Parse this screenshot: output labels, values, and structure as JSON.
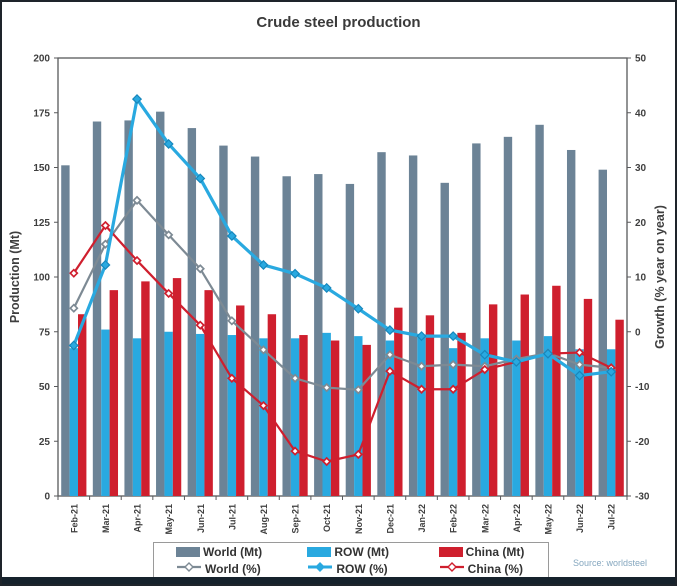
{
  "frame": {
    "source": "Source: worldsteel"
  },
  "chart_data": {
    "type": "bar+line",
    "title": "Crude steel production",
    "categories": [
      "Feb-21",
      "Mar-21",
      "Apr-21",
      "May-21",
      "Jun-21",
      "Jul-21",
      "Aug-21",
      "Sep-21",
      "Oct-21",
      "Nov-21",
      "Dec-21",
      "Jan-22",
      "Feb-22",
      "Mar-22",
      "Apr-22",
      "May-22",
      "Jun-22",
      "Jul-22"
    ],
    "left_axis": {
      "label": "Production (Mt)",
      "min": 0,
      "max": 200,
      "step": 25
    },
    "right_axis": {
      "label": "Growth (% year on year)",
      "min": -30,
      "max": 50,
      "step": 10
    },
    "grid": "off",
    "legend_position": "bottom",
    "bar_series": [
      {
        "name": "World (Mt)",
        "color": "#6c8396",
        "values": [
          151,
          171,
          171.5,
          175.5,
          168,
          160,
          155,
          146,
          147,
          142.5,
          157,
          155.5,
          143,
          161,
          164,
          169.5,
          158,
          149
        ]
      },
      {
        "name": "ROW (Mt)",
        "color": "#29a9e0",
        "values": [
          67.5,
          76,
          72,
          75,
          74,
          73.5,
          72,
          72,
          74.5,
          73,
          71,
          72.5,
          67.5,
          72,
          71,
          73,
          67,
          67
        ]
      },
      {
        "name": "China (Mt)",
        "color": "#cf1f2e",
        "values": [
          83,
          94,
          98,
          99.5,
          94,
          87,
          83,
          73.5,
          71,
          69,
          86,
          82.5,
          74.5,
          87.5,
          92,
          96,
          90,
          80.5
        ]
      }
    ],
    "line_series": [
      {
        "name": "World (%)",
        "color": "#7d8a94",
        "marker": "open-diamond",
        "values": [
          4.3,
          16,
          24,
          17.7,
          11.5,
          2,
          -3.3,
          -8.5,
          -10.2,
          -10.6,
          -4.2,
          -6.3,
          -6,
          -6.3,
          -5,
          -3.9,
          -6,
          -6.6
        ]
      },
      {
        "name": "ROW (%)",
        "color": "#29a9e0",
        "marker": "solid-diamond",
        "values": [
          -2.5,
          12.2,
          42.5,
          34.3,
          28,
          17.5,
          12.2,
          10.6,
          8,
          4.2,
          0.3,
          -0.8,
          -0.8,
          -4.2,
          -5.5,
          -4,
          -8,
          -7.3
        ]
      },
      {
        "name": "China (%)",
        "color": "#cf1f2e",
        "marker": "open-diamond",
        "values": [
          10.7,
          19.4,
          13,
          7,
          1.2,
          -8.5,
          -13.5,
          -21.8,
          -23.7,
          -22.4,
          -7.2,
          -10.5,
          -10.5,
          -6.9,
          -5.5,
          -4,
          -3.8,
          -6.6
        ]
      }
    ]
  }
}
